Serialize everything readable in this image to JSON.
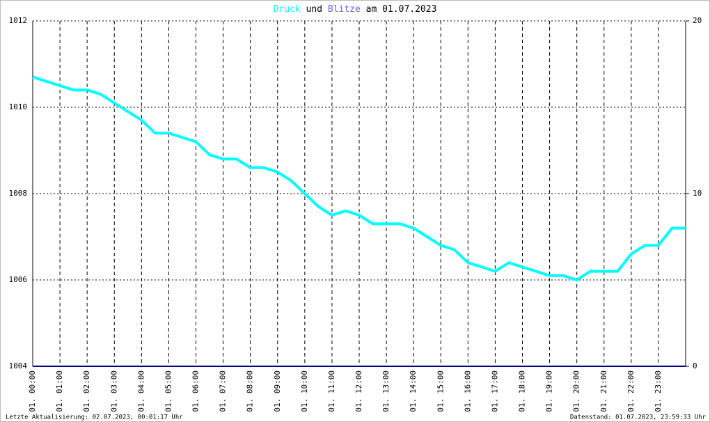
{
  "chart_data": {
    "type": "line",
    "title": [
      "und",
      "am 01.07.2023"
    ],
    "notes": [
      "Letzte Aktualisierung: 02.07.2023, 00:01:17 Uhr",
      "Datenstand: 01.07.2023, 23:59:33 Uhr"
    ],
    "x": [
      0,
      0.5,
      1,
      1.5,
      2,
      2.5,
      3,
      3.5,
      4,
      4.5,
      5,
      5.5,
      6,
      6.5,
      7,
      7.5,
      8,
      8.5,
      9,
      9.5,
      10,
      10.5,
      11,
      11.5,
      12,
      12.5,
      13,
      13.5,
      14,
      14.5,
      15,
      15.5,
      16,
      16.5,
      17,
      17.5,
      18,
      18.5,
      19,
      19.5,
      20,
      20.5,
      21,
      21.5,
      22,
      22.5,
      23,
      23.5,
      24
    ],
    "series": [
      {
        "name": "Druck",
        "color": "#00ffff",
        "axis": "y",
        "values": [
          1010.7,
          1010.6,
          1010.5,
          1010.4,
          1010.4,
          1010.3,
          1010.1,
          1009.9,
          1009.7,
          1009.4,
          1009.4,
          1009.3,
          1009.2,
          1008.9,
          1008.8,
          1008.8,
          1008.6,
          1008.6,
          1008.5,
          1008.3,
          1008.0,
          1007.7,
          1007.5,
          1007.6,
          1007.5,
          1007.3,
          1007.3,
          1007.3,
          1007.2,
          1007.0,
          1006.8,
          1006.7,
          1006.4,
          1006.3,
          1006.2,
          1006.4,
          1006.3,
          1006.2,
          1006.1,
          1006.1,
          1006.0,
          1006.2,
          1006.2,
          1006.2,
          1006.6,
          1006.8,
          1006.8,
          1007.2,
          1007.2
        ]
      },
      {
        "name": "Blitze",
        "color": "#000080",
        "axis": "y2",
        "values": [
          0,
          0,
          0,
          0,
          0,
          0,
          0,
          0,
          0,
          0,
          0,
          0,
          0,
          0,
          0,
          0,
          0,
          0,
          0,
          0,
          0,
          0,
          0,
          0,
          0,
          0,
          0,
          0,
          0,
          0,
          0,
          0,
          0,
          0,
          0,
          0,
          0,
          0,
          0,
          0,
          0,
          0,
          0,
          0,
          0,
          0,
          0,
          0,
          0
        ]
      }
    ],
    "xlim": [
      0,
      24
    ],
    "xticks": [
      {
        "value": 0,
        "label": "01. 00:00"
      },
      {
        "value": 1,
        "label": "01. 01:00"
      },
      {
        "value": 2,
        "label": "01. 02:00"
      },
      {
        "value": 3,
        "label": "01. 03:00"
      },
      {
        "value": 4,
        "label": "01. 04:00"
      },
      {
        "value": 5,
        "label": "01. 05:00"
      },
      {
        "value": 6,
        "label": "01. 06:00"
      },
      {
        "value": 7,
        "label": "01. 07:00"
      },
      {
        "value": 8,
        "label": "01. 08:00"
      },
      {
        "value": 9,
        "label": "01. 09:00"
      },
      {
        "value": 10,
        "label": "01. 10:00"
      },
      {
        "value": 11,
        "label": "01. 11:00"
      },
      {
        "value": 12,
        "label": "01. 12:00"
      },
      {
        "value": 13,
        "label": "01. 13:00"
      },
      {
        "value": 14,
        "label": "01. 14:00"
      },
      {
        "value": 15,
        "label": "01. 15:00"
      },
      {
        "value": 16,
        "label": "01. 16:00"
      },
      {
        "value": 17,
        "label": "01. 17:00"
      },
      {
        "value": 18,
        "label": "01. 18:00"
      },
      {
        "value": 19,
        "label": "01. 19:00"
      },
      {
        "value": 20,
        "label": "01. 20:00"
      },
      {
        "value": 21,
        "label": "01. 21:00"
      },
      {
        "value": 22,
        "label": "01. 22:00"
      },
      {
        "value": 23,
        "label": "01. 23:00"
      }
    ],
    "ylim": [
      1004,
      1012
    ],
    "yticks": [
      1004,
      1006,
      1008,
      1010,
      1012
    ],
    "y2lim": [
      0,
      20
    ],
    "y2ticks": [
      0,
      10,
      20
    ],
    "grid": true
  }
}
